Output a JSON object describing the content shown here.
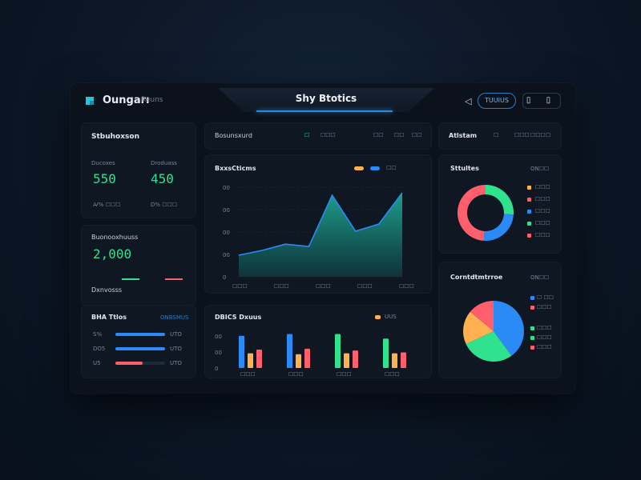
{
  "app": {
    "title": "Oungarı",
    "subtitle": "Reuns",
    "center_title": "Shy Btotics"
  },
  "header": {
    "back_glyph": "◁",
    "pill_label": "TUUIUS",
    "icon_glyphs": "▯ ▯"
  },
  "stats_card": {
    "title": "Stbuhoxson",
    "left_label": "Ducoxes",
    "left_value": "550",
    "left_foot": "Ꜹ%  ☐☐☐",
    "right_label": "Droduass",
    "right_value": "450",
    "right_foot": "D%  ☐☐☐"
  },
  "balance_card": {
    "title": "Buonooxhuuss",
    "value": "2,000",
    "foot_label": "Dxnvosss",
    "bars": [
      {
        "color": "#2fe28e",
        "fill": 0.5
      },
      {
        "color": "#ff5f6d",
        "fill": 0.5
      }
    ]
  },
  "sources_card": {
    "title": "BHA Ttlos",
    "link": "ONBSMUS",
    "rows": [
      {
        "label": "S%",
        "value": "UTO",
        "fill": 0.95,
        "color": "#2a8af6"
      },
      {
        "label": "DO5",
        "value": "UTO",
        "fill": 0.95,
        "color": "#2a8af6"
      },
      {
        "label": "U5",
        "value": "UTO",
        "fill": 0.55,
        "color": "#ff5f6d"
      }
    ]
  },
  "tabs_strip": {
    "title": "Bosunsxurd",
    "items": [
      "☐",
      "☐☐☐",
      "☐☐",
      "☐☐",
      "☐☐"
    ]
  },
  "area_chart_card": {
    "title": "BxxsCticms",
    "legend_text": "☐☐"
  },
  "bar_chart_card": {
    "title": "DBICS  Dxuus",
    "legend_text": "UUS"
  },
  "settings_card": {
    "title": "Atlstam",
    "items": [
      "☐",
      "☐☐☐",
      "☐☐☐☐"
    ]
  },
  "donut_card": {
    "title": "Sttultes",
    "link": "ON☐☐",
    "legend": [
      {
        "label": "☐☐☐",
        "color": "#ffb050"
      },
      {
        "label": "☐☐☐",
        "color": "#ff5f6d"
      },
      {
        "label": "☐☐☐",
        "color": "#2a8af6"
      },
      {
        "label": "☐☐☐",
        "color": "#2fe28e"
      },
      {
        "label": "☐☐☐",
        "color": "#ff5f6d"
      }
    ]
  },
  "pie_card": {
    "title": "Corntdtmtrroe",
    "link": "ON☐☐",
    "legend": [
      {
        "label": "☐ ☐☐",
        "color": "#2a8af6"
      },
      {
        "label": "☐☐☐",
        "color": "#ff5f6d"
      },
      {
        "label": "☐☐☐",
        "color": "#2fe28e"
      },
      {
        "label": "☐☐☐",
        "color": "#2fe28e"
      },
      {
        "label": "☐☐☐",
        "color": "#ff5f6d"
      }
    ]
  },
  "chart_data": [
    {
      "type": "area",
      "x": [
        1,
        2,
        3,
        4,
        5,
        6,
        7,
        8
      ],
      "series": [
        {
          "values": [
            0.45,
            0.55,
            0.68,
            0.63,
            1.7,
            0.95,
            1.1,
            1.75
          ],
          "color": "#2a8af6"
        }
      ],
      "ytick_labels": [
        "00",
        "00",
        "00",
        "00",
        "0"
      ],
      "xtick_labels": [
        "☐☐☐",
        "☐☐☐",
        "☐☐☐",
        "☐☐☐",
        "☐☐☐"
      ],
      "ylim": [
        0,
        2
      ],
      "legend": [
        {
          "color": "#ffb050"
        },
        {
          "color": "#2a8af6"
        }
      ]
    },
    {
      "type": "bar",
      "categories": [
        "☐☐☐",
        "☐☐☐",
        "☐☐☐",
        "☐☐☐"
      ],
      "series": [
        {
          "color": "#2a8af6",
          "values": [
            35,
            37,
            37,
            32
          ]
        },
        {
          "color": "#ffb050",
          "values": [
            16,
            15,
            16,
            16
          ]
        },
        {
          "color": "#ff5f6d",
          "values": [
            20,
            21,
            19,
            17
          ]
        }
      ],
      "series_colors_per_category": [
        [
          "#2a8af6",
          "#ffb050",
          "#ff5f6d"
        ],
        [
          "#2a8af6",
          "#ffb050",
          "#ff5f6d"
        ],
        [
          "#2fe28e",
          "#ffb050",
          "#ff5f6d"
        ],
        [
          "#2fe28e",
          "#ffb050",
          "#ff5f6d"
        ]
      ],
      "ytick_labels": [
        "00",
        "00",
        "0"
      ],
      "ylim": [
        0,
        40
      ],
      "legend": [
        {
          "color": "#ffb050"
        }
      ]
    },
    {
      "type": "pie",
      "variant": "donut",
      "values": [
        26,
        25,
        30,
        19
      ],
      "colors": [
        "#2fe28e",
        "#2a8af6",
        "#ff5f6d",
        "#ff5f6d"
      ]
    },
    {
      "type": "pie",
      "values": [
        40,
        28,
        18,
        14
      ],
      "colors": [
        "#2a8af6",
        "#2fe28e",
        "#ffb050",
        "#ff5f6d"
      ]
    }
  ]
}
